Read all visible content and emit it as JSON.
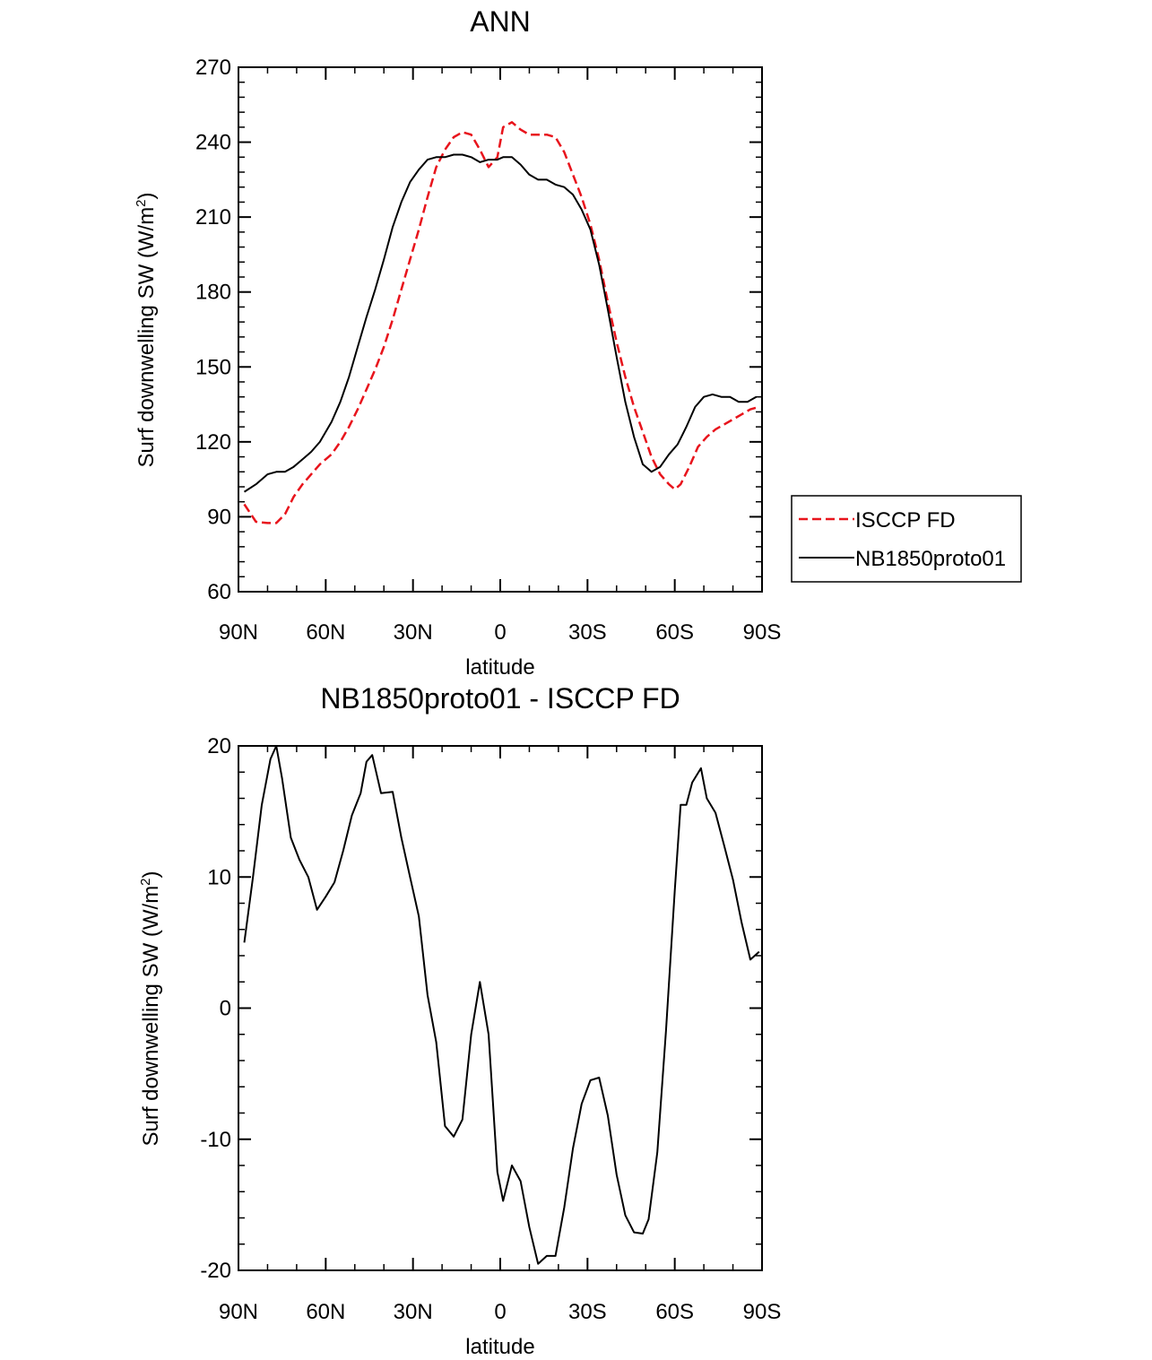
{
  "chart_data": [
    {
      "type": "line",
      "title": "ANN",
      "xlabel": "latitude",
      "ylabel": "Surf downwelling SW (W/m",
      "ylabel_sup": "2",
      "ylabel_close": ")",
      "xlim": [
        -90,
        90
      ],
      "ylim": [
        60,
        270
      ],
      "xticks": [
        -90,
        -60,
        -30,
        0,
        30,
        60,
        90
      ],
      "xtick_labels": [
        "90N",
        "60N",
        "30N",
        "0",
        "30S",
        "60S",
        "90S"
      ],
      "yticks": [
        60,
        90,
        120,
        150,
        180,
        210,
        240,
        270
      ],
      "ytick_labels": [
        "60",
        "90",
        "120",
        "150",
        "180",
        "210",
        "240",
        "270"
      ],
      "legend": {
        "position": "right",
        "entries": [
          "ISCCP FD",
          "NB1850proto01"
        ]
      },
      "series": [
        {
          "name": "ISCCP FD",
          "color": "#e8141c",
          "dash": true,
          "x": [
            -88,
            -84,
            -80,
            -77,
            -74,
            -71,
            -68,
            -65,
            -62,
            -58,
            -55,
            -52,
            -49,
            -46,
            -43,
            -40,
            -37,
            -34,
            -31,
            -28,
            -25,
            -22,
            -19,
            -16,
            -13,
            -10,
            -7,
            -4,
            -1,
            1,
            4,
            7,
            10,
            13,
            16,
            19,
            22,
            25,
            28,
            31,
            34,
            37,
            40,
            43,
            46,
            49,
            52,
            55,
            58,
            60,
            62,
            65,
            68,
            71,
            74,
            77,
            80,
            83,
            86,
            89
          ],
          "y": [
            95,
            88,
            87.5,
            87.5,
            91,
            98,
            103,
            107,
            111,
            115,
            120,
            126,
            133,
            141,
            149,
            158,
            169,
            181,
            193,
            205,
            218,
            230,
            237,
            242,
            244,
            243,
            237,
            230,
            234,
            246,
            248,
            245,
            243,
            243,
            243,
            242,
            236,
            227,
            218,
            207,
            193,
            176,
            160,
            146,
            134,
            124,
            114,
            107,
            103,
            101,
            103,
            110,
            118,
            122,
            125,
            127,
            129,
            131,
            133,
            134
          ]
        },
        {
          "name": "NB1850proto01",
          "color": "#000000",
          "dash": false,
          "x": [
            -88,
            -84,
            -80,
            -77,
            -74,
            -71,
            -68,
            -65,
            -62,
            -58,
            -55,
            -52,
            -49,
            -46,
            -43,
            -40,
            -37,
            -34,
            -31,
            -28,
            -25,
            -22,
            -19,
            -16,
            -13,
            -10,
            -7,
            -4,
            -1,
            1,
            4,
            7,
            10,
            13,
            16,
            19,
            22,
            25,
            28,
            31,
            34,
            37,
            40,
            43,
            46,
            49,
            52,
            55,
            58,
            61,
            64,
            67,
            70,
            73,
            76,
            79,
            82,
            85,
            88
          ],
          "y": [
            100,
            103,
            107,
            108,
            108,
            110,
            113,
            116,
            120,
            128,
            136,
            146,
            158,
            170,
            181,
            193,
            206,
            216,
            224,
            229,
            233,
            234,
            234,
            235,
            235,
            234,
            232,
            233,
            233,
            234,
            234,
            231,
            227,
            225,
            225,
            223,
            222,
            219,
            213,
            205,
            191,
            173,
            154,
            136,
            122,
            111,
            108,
            110,
            115,
            119,
            126,
            134,
            138,
            139,
            138,
            138,
            136,
            136,
            138
          ]
        }
      ]
    },
    {
      "type": "line",
      "title": "NB1850proto01 - ISCCP FD",
      "xlabel": "latitude",
      "ylabel": "Surf downwelling SW (W/m",
      "ylabel_sup": "2",
      "ylabel_close": ")",
      "xlim": [
        -90,
        90
      ],
      "ylim": [
        -20,
        20
      ],
      "xticks": [
        -90,
        -60,
        -30,
        0,
        30,
        60,
        90
      ],
      "xtick_labels": [
        "90N",
        "60N",
        "30N",
        "0",
        "30S",
        "60S",
        "90S"
      ],
      "yticks": [
        -20,
        -10,
        0,
        10,
        20
      ],
      "ytick_labels": [
        "-20",
        "-10",
        "0",
        "10",
        "20"
      ],
      "series": [
        {
          "name": "NB1850proto01 - ISCCP FD",
          "color": "#000000",
          "dash": false,
          "x": [
            -88,
            -85,
            -82,
            -79,
            -77,
            -75,
            -72,
            -69,
            -66,
            -63,
            -60,
            -57,
            -54,
            -51,
            -48,
            -46,
            -44,
            -41,
            -37,
            -34,
            -31,
            -28,
            -25,
            -22,
            -19,
            -16,
            -13,
            -10,
            -7,
            -4,
            -1,
            1,
            4,
            7,
            10,
            13,
            16,
            19,
            22,
            25,
            28,
            31,
            34,
            37,
            40,
            43,
            46,
            49,
            51,
            54,
            57,
            60,
            62,
            64,
            66,
            69,
            71,
            74,
            77,
            80,
            83,
            86,
            89
          ],
          "y": [
            5,
            10,
            15.5,
            19,
            20,
            17.5,
            13,
            11.3,
            10,
            7.5,
            8.5,
            9.6,
            12,
            14.7,
            16.4,
            18.8,
            19.3,
            16.4,
            16.5,
            13,
            10,
            7,
            1,
            -2.6,
            -9,
            -9.8,
            -8.5,
            -2,
            2,
            -2,
            -12.5,
            -14.7,
            -12,
            -13.2,
            -16.7,
            -19.5,
            -18.9,
            -18.9,
            -15.2,
            -10.7,
            -7.3,
            -5.5,
            -5.3,
            -8.2,
            -12.7,
            -15.8,
            -17.1,
            -17.2,
            -16.1,
            -11,
            -1.7,
            9,
            15.5,
            15.5,
            17.2,
            18.3,
            16,
            14.9,
            12.4,
            9.8,
            6.5,
            3.7,
            4.3
          ]
        }
      ]
    }
  ]
}
